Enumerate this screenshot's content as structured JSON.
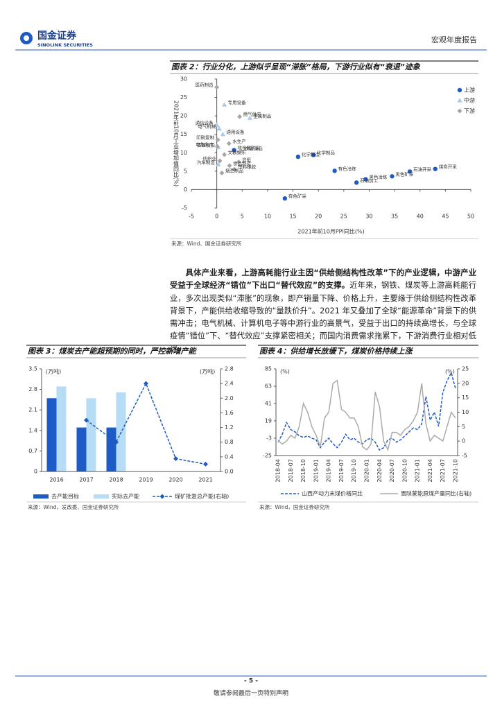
{
  "header": {
    "company": "国金证券",
    "company_en": "SINOLINK SECURITIES",
    "report_type": "宏观年度报告"
  },
  "paragraph": {
    "bold": "具体产业来看，上游高耗能行业主因“供给侧结构性改革”下的产业逻辑，中游产业受益于全球经济“错位”下出口“替代效应”的支撑。",
    "text": "近年来，钢铁、煤炭等上游高耗能行业，多次出现类似“滞胀”的现象，即产销量下降、价格上升，主要缘于供给侧结构性改革背景下，产能供给收缩导致的“量跌价升”。2021 年又叠加了全球“能源革命”背景下的供需冲击；电气机械、计算机电子等中游行业的高景气，受益于出口的持续高增长，与全球疫情“错位”下、“替代效应”支撑紧密相关；而国内消费需求拖累下，下游消费行业相对低迷。"
  },
  "chart_data": [
    {
      "type": "scatter",
      "title": "图表 2：行业分化，上游似乎呈现“滞胀”格局，下游行业似有“衰退”迹象",
      "xlabel": "2021年前10月PPI同比(%)",
      "ylabel": "2021年前10月工业增加值同比(%)",
      "source": "来源：Wind、国金证券研究所",
      "xlim": [
        -5,
        50
      ],
      "xticks": [
        -5,
        0,
        5,
        10,
        15,
        20,
        25,
        30,
        35,
        40,
        45,
        50
      ],
      "ylim": [
        -5,
        30
      ],
      "yticks": [
        -5,
        0,
        5,
        10,
        15,
        20,
        25,
        30
      ],
      "legend": "upper right",
      "series": [
        {
          "name": "上游",
          "color": "#1f5bc4",
          "marker": "circle",
          "points": [
            {
              "label": "煤炭开采",
              "x": 43,
              "y": 5.6
            },
            {
              "label": "石油开采",
              "x": 38,
              "y": 4.9
            },
            {
              "label": "黑色矿采",
              "x": 34.5,
              "y": 3.6
            },
            {
              "label": "黑色冶炼",
              "x": 29.3,
              "y": 2.8
            },
            {
              "label": "石油加工",
              "x": 27.5,
              "y": 1.9
            },
            {
              "label": "有色冶炼",
              "x": 23.2,
              "y": 5.1
            },
            {
              "label": "化学制品",
              "x": 19,
              "y": 9.4
            },
            {
              "label": "化学制造",
              "x": 16,
              "y": 8.9
            },
            {
              "label": "有色矿采",
              "x": 13.4,
              "y": -2.4
            },
            {
              "label": "非金属矿采",
              "x": 3.4,
              "y": 10.7
            }
          ]
        },
        {
          "name": "中游",
          "color": "#a9cbe8",
          "marker": "triangle",
          "points": [
            {
              "label": "金属制品",
              "x": 6.5,
              "y": 19.4
            },
            {
              "label": "专用设备",
              "x": 1.5,
              "y": 23
            },
            {
              "label": "通信设备",
              "x": 0,
              "y": 17.5
            },
            {
              "label": "电气机械",
              "x": 0.5,
              "y": 16.5
            },
            {
              "label": "通用设备",
              "x": 1.2,
              "y": 15
            },
            {
              "label": "铁路船舶",
              "x": 0.3,
              "y": 11.5
            },
            {
              "label": "汽车制造",
              "x": 0.3,
              "y": 6.8
            }
          ]
        },
        {
          "name": "下游",
          "color": "#a6a6a6",
          "marker": "diamond",
          "points": [
            {
              "label": "医药制造",
              "x": 0,
              "y": 27.8
            },
            {
              "label": "燃气供应",
              "x": 4.5,
              "y": 19.8
            },
            {
              "label": "印刷复制",
              "x": 0.2,
              "y": 13.5
            },
            {
              "label": "电热生产",
              "x": 0.1,
              "y": 11.7
            },
            {
              "label": "水生产",
              "x": 2.4,
              "y": 12.5
            },
            {
              "label": "文教娱乐",
              "x": 1.5,
              "y": 9.5
            },
            {
              "label": "农副食品",
              "x": 4.8,
              "y": 10.5
            },
            {
              "label": "纺织业",
              "x": 0.6,
              "y": 7.8
            },
            {
              "label": "造纸",
              "x": 4.3,
              "y": 7.5
            },
            {
              "label": "食品制造",
              "x": 2.5,
              "y": 6.5
            },
            {
              "label": "塑料橡胶",
              "x": 3.5,
              "y": 5.5
            },
            {
              "label": "烟草制品",
              "x": 1.0,
              "y": 4.5
            }
          ]
        }
      ]
    },
    {
      "type": "bar",
      "title": "图表 3：煤炭去产能超预期的同时，严控新增产能",
      "source": "来源：Wind，发改委、国金证券研究所",
      "ylabel": "(万吨)",
      "y2label": "(万吨)",
      "categories": [
        "2016",
        "2017",
        "2018",
        "2019",
        "2020",
        "2021"
      ],
      "ylim": [
        0,
        3.5
      ],
      "yticks": [
        0,
        0.7,
        1.4,
        2.1,
        2.8,
        3.5
      ],
      "y2lim": [
        0,
        2.8
      ],
      "y2ticks": [
        {
          "value": 0,
          "label": "0.0"
        },
        0.4,
        0.8,
        1.2,
        1.6,
        {
          "value": 2,
          "label": "2.0"
        },
        2.4,
        2.8
      ],
      "legend": "bottom",
      "series": [
        {
          "name": "去产能目标",
          "type": "bar",
          "color": "#1f5bc4",
          "values": [
            2.5,
            1.5,
            1.5,
            null,
            null,
            null
          ]
        },
        {
          "name": "实际去产能",
          "type": "bar",
          "color": "#b7dcf5",
          "values": [
            2.9,
            2.5,
            2.7,
            null,
            null,
            null
          ]
        },
        {
          "name": "煤矿批复总产能(右轴)",
          "type": "line",
          "axis": "y2",
          "dashed": true,
          "marker": "diamond",
          "color": "#1f5bc4",
          "values": [
            null,
            1.4,
            0.8,
            2.4,
            0.35,
            0.2
          ]
        }
      ]
    },
    {
      "type": "line",
      "title": "图表 4：供给增长放缓下，煤炭价格持续上涨",
      "source": "来源：Wind，国金证券研究所",
      "ylabel": "(%)",
      "y2label": "(%)",
      "categories": [
        "2018-04",
        null,
        null,
        "2018-07",
        null,
        null,
        "2018-10",
        null,
        null,
        "2019-01",
        null,
        null,
        "2019-04",
        null,
        null,
        "2019-07",
        null,
        null,
        "2019-10",
        null,
        null,
        "2020-01",
        null,
        null,
        "2020-04",
        null,
        null,
        "2020-07",
        null,
        null,
        "2020-10",
        null,
        null,
        "2021-01",
        null,
        null,
        "2021-04",
        null,
        null,
        "2021-07",
        null,
        null,
        "2021-10"
      ],
      "ylim": [
        -25,
        85
      ],
      "yticks": [
        -25,
        -3,
        19,
        41,
        63,
        85
      ],
      "y2lim": [
        -5,
        25
      ],
      "y2ticks": [
        -5,
        0,
        5,
        10,
        15,
        20,
        25
      ],
      "legend": "bottom",
      "series": [
        {
          "name": "山西产动力末煤价格同比",
          "color": "#1f5bc4",
          "dashed": true,
          "values": [
            -8,
            2,
            17,
            8,
            5,
            0,
            -2,
            0,
            -3,
            -5,
            -15,
            -8,
            -3,
            -10,
            -15,
            -8,
            2,
            -5,
            -3,
            -8,
            -10,
            -5,
            -3,
            -8,
            -18,
            -15,
            -5,
            -3,
            -8,
            -5,
            0,
            5,
            10,
            8,
            15,
            50,
            20,
            30,
            12,
            55,
            70,
            80,
            60
          ]
        },
        {
          "name": "晋陕蒙能原煤产量同比(右轴)",
          "color": "#aaaaaa",
          "axis": "y2",
          "dashed": false,
          "values": [
            0,
            -1,
            0,
            2,
            1,
            5,
            13,
            10,
            5,
            2,
            -2,
            8,
            10,
            20,
            21,
            11,
            10,
            8,
            8,
            5,
            -2,
            -3,
            -1,
            17,
            12,
            0,
            -3,
            3,
            3,
            2,
            4,
            5,
            7,
            10,
            20,
            6,
            0,
            2,
            1,
            0,
            5,
            10,
            8
          ]
        }
      ]
    }
  ],
  "footer": {
    "page": "- 5 -",
    "notice": "敬请参阅最后一页特别声明"
  }
}
